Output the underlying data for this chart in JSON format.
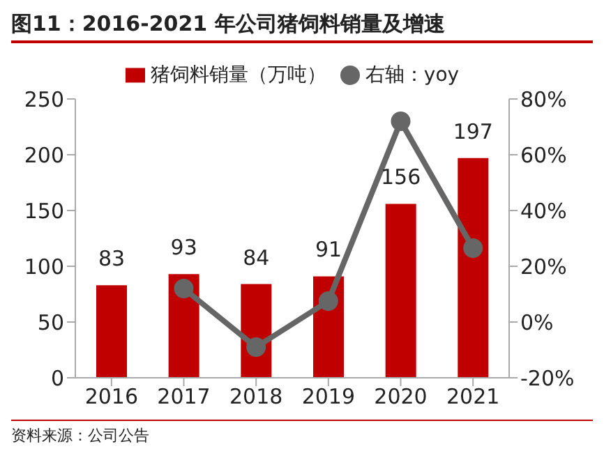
{
  "chart_data": {
    "type": "bar",
    "title": "图11：2016-2021 年公司猪饲料销量及增速",
    "categories": [
      "2016",
      "2017",
      "2018",
      "2019",
      "2020",
      "2021"
    ],
    "series": [
      {
        "name": "猪饲料销量（万吨）",
        "color": "#c00000",
        "values": [
          83,
          93,
          84,
          91,
          156,
          197
        ],
        "value_labels": [
          "83",
          "93",
          "84",
          "91",
          "156",
          "197"
        ]
      },
      {
        "name": "右轴：yoy",
        "type": "line",
        "axis": "y2",
        "color": "#666666",
        "values": [
          null,
          12,
          -9,
          7.5,
          72,
          26.5
        ]
      }
    ],
    "ylim": [
      0,
      250
    ],
    "yticks": [
      0,
      50,
      100,
      150,
      200,
      250
    ],
    "y2lim": [
      -20,
      80
    ],
    "y2ticks": [
      {
        "value": -20,
        "label": "-20%"
      },
      {
        "value": 0,
        "label": "0%"
      },
      {
        "value": 20,
        "label": "20%"
      },
      {
        "value": 40,
        "label": "40%"
      },
      {
        "value": 60,
        "label": "60%"
      },
      {
        "value": 80,
        "label": "80%"
      }
    ],
    "marker": "circle",
    "legend": "top",
    "annotations": [
      "资料来源：公司公告"
    ]
  }
}
